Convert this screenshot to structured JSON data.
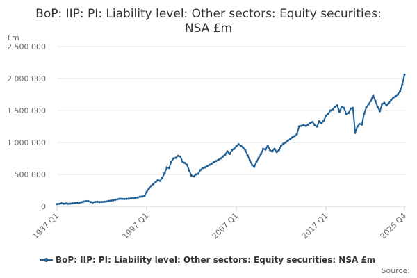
{
  "chart_data": {
    "type": "line",
    "title_lines": [
      "BoP: IIP: PI: Liability level: Other sectors: Equity securities:",
      "NSA £m"
    ],
    "ylabel": "£m",
    "ylim": [
      0,
      2500000
    ],
    "yticks": [
      0,
      500000,
      1000000,
      1500000,
      2000000,
      2500000
    ],
    "ytick_labels": [
      "0",
      "500 000",
      "1 000 000",
      "1 500 000",
      "2 000 000",
      "2 500 000"
    ],
    "xtick_labels": [
      "1987 Q1",
      "1997 Q1",
      "2007 Q1",
      "2017 Q1",
      "2025 Q4"
    ],
    "xtick_index": [
      0,
      40,
      80,
      120,
      155
    ],
    "grid": true,
    "legend_position": "bottom",
    "legend_label": "BoP: IIP: PI: Liability level: Other sectors: Equity securities: NSA £m",
    "source_label": "Source:",
    "color": "#206095",
    "series": [
      {
        "name": "BoP: IIP: PI: Liability level: Other sectors: Equity securities: NSA £m",
        "x": [
          "1987 Q1",
          "1987 Q2",
          "1987 Q3",
          "1987 Q4",
          "1988 Q1",
          "1988 Q2",
          "1988 Q3",
          "1988 Q4",
          "1989 Q1",
          "1989 Q2",
          "1989 Q3",
          "1989 Q4",
          "1990 Q1",
          "1990 Q2",
          "1990 Q3",
          "1990 Q4",
          "1991 Q1",
          "1991 Q2",
          "1991 Q3",
          "1991 Q4",
          "1992 Q1",
          "1992 Q2",
          "1992 Q3",
          "1992 Q4",
          "1993 Q1",
          "1993 Q2",
          "1993 Q3",
          "1993 Q4",
          "1994 Q1",
          "1994 Q2",
          "1994 Q3",
          "1994 Q4",
          "1995 Q1",
          "1995 Q2",
          "1995 Q3",
          "1995 Q4",
          "1996 Q1",
          "1996 Q2",
          "1996 Q3",
          "1996 Q4",
          "1997 Q1",
          "1997 Q2",
          "1997 Q3",
          "1997 Q4",
          "1998 Q1",
          "1998 Q2",
          "1998 Q3",
          "1998 Q4",
          "1999 Q1",
          "1999 Q2",
          "1999 Q3",
          "1999 Q4",
          "2000 Q1",
          "2000 Q2",
          "2000 Q3",
          "2000 Q4",
          "2001 Q1",
          "2001 Q2",
          "2001 Q3",
          "2001 Q4",
          "2002 Q1",
          "2002 Q2",
          "2002 Q3",
          "2002 Q4",
          "2003 Q1",
          "2003 Q2",
          "2003 Q3",
          "2003 Q4",
          "2004 Q1",
          "2004 Q2",
          "2004 Q3",
          "2004 Q4",
          "2005 Q1",
          "2005 Q2",
          "2005 Q3",
          "2005 Q4",
          "2006 Q1",
          "2006 Q2",
          "2006 Q3",
          "2006 Q4",
          "2007 Q1",
          "2007 Q2",
          "2007 Q3",
          "2007 Q4",
          "2008 Q1",
          "2008 Q2",
          "2008 Q3",
          "2008 Q4",
          "2009 Q1",
          "2009 Q2",
          "2009 Q3",
          "2009 Q4",
          "2010 Q1",
          "2010 Q2",
          "2010 Q3",
          "2010 Q4",
          "2011 Q1",
          "2011 Q2",
          "2011 Q3",
          "2011 Q4",
          "2012 Q1",
          "2012 Q2",
          "2012 Q3",
          "2012 Q4",
          "2013 Q1",
          "2013 Q2",
          "2013 Q3",
          "2013 Q4",
          "2014 Q1",
          "2014 Q2",
          "2014 Q3",
          "2014 Q4",
          "2015 Q1",
          "2015 Q2",
          "2015 Q3",
          "2015 Q4",
          "2016 Q1",
          "2016 Q2",
          "2016 Q3",
          "2016 Q4",
          "2017 Q1",
          "2017 Q2",
          "2017 Q3",
          "2017 Q4",
          "2018 Q1",
          "2018 Q2",
          "2018 Q3",
          "2018 Q4",
          "2019 Q1",
          "2019 Q2",
          "2019 Q3",
          "2019 Q4",
          "2020 Q1",
          "2020 Q2",
          "2020 Q3",
          "2020 Q4",
          "2021 Q1",
          "2021 Q2",
          "2021 Q3",
          "2021 Q4",
          "2022 Q1",
          "2022 Q2",
          "2022 Q3",
          "2022 Q4",
          "2023 Q1",
          "2023 Q2",
          "2023 Q3",
          "2023 Q4",
          "2024 Q1",
          "2024 Q2",
          "2024 Q3",
          "2024 Q4",
          "2025 Q1",
          "2025 Q2",
          "2025 Q3",
          "2025 Q4"
        ],
        "values": [
          35000,
          40000,
          48000,
          42000,
          45000,
          40000,
          43000,
          47000,
          50000,
          55000,
          60000,
          65000,
          75000,
          82000,
          80000,
          68000,
          62000,
          70000,
          72000,
          68000,
          70000,
          72000,
          78000,
          85000,
          90000,
          95000,
          105000,
          112000,
          120000,
          118000,
          116000,
          118000,
          120000,
          125000,
          130000,
          135000,
          140000,
          150000,
          155000,
          165000,
          230000,
          280000,
          320000,
          350000,
          380000,
          410000,
          400000,
          450000,
          520000,
          610000,
          600000,
          700000,
          750000,
          760000,
          790000,
          780000,
          700000,
          680000,
          650000,
          560000,
          480000,
          470000,
          500000,
          510000,
          570000,
          600000,
          610000,
          630000,
          650000,
          670000,
          690000,
          710000,
          730000,
          750000,
          780000,
          810000,
          860000,
          820000,
          880000,
          900000,
          940000,
          970000,
          950000,
          920000,
          880000,
          800000,
          720000,
          650000,
          620000,
          700000,
          760000,
          820000,
          900000,
          890000,
          950000,
          880000,
          860000,
          900000,
          850000,
          880000,
          950000,
          980000,
          1000000,
          1030000,
          1050000,
          1080000,
          1100000,
          1130000,
          1250000,
          1260000,
          1270000,
          1260000,
          1280000,
          1300000,
          1320000,
          1270000,
          1250000,
          1330000,
          1300000,
          1340000,
          1420000,
          1450000,
          1500000,
          1520000,
          1560000,
          1580000,
          1480000,
          1560000,
          1540000,
          1450000,
          1460000,
          1530000,
          1540000,
          1150000,
          1250000,
          1290000,
          1280000,
          1450000,
          1550000,
          1600000,
          1650000,
          1740000,
          1650000,
          1560000,
          1490000,
          1600000,
          1620000,
          1580000,
          1620000,
          1660000,
          1700000,
          1720000,
          1750000,
          1800000,
          1900000,
          2060000
        ]
      }
    ]
  }
}
